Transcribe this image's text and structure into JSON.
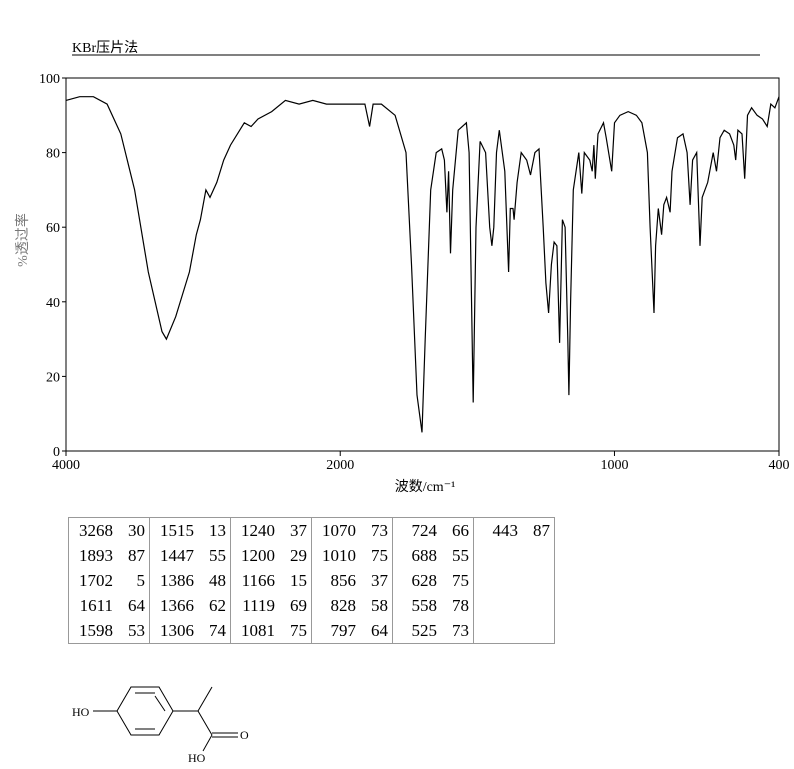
{
  "chart_data": {
    "type": "line",
    "title": "KBr压片法",
    "xlabel": "波数/cm⁻¹",
    "ylabel": "%透过率",
    "xlim": [
      4000,
      400
    ],
    "xticks": [
      4000,
      2000,
      1000,
      400
    ],
    "ylim": [
      0,
      100
    ],
    "yticks": [
      0,
      20,
      40,
      60,
      80,
      100
    ],
    "color": "#000000",
    "x": [
      4000,
      3900,
      3800,
      3700,
      3600,
      3500,
      3400,
      3300,
      3268,
      3200,
      3100,
      3050,
      3020,
      2980,
      2950,
      2900,
      2850,
      2800,
      2700,
      2650,
      2600,
      2500,
      2400,
      2300,
      2200,
      2100,
      2000,
      1950,
      1910,
      1893,
      1880,
      1850,
      1800,
      1760,
      1740,
      1720,
      1702,
      1690,
      1670,
      1650,
      1630,
      1620,
      1611,
      1605,
      1598,
      1590,
      1570,
      1540,
      1530,
      1515,
      1505,
      1490,
      1470,
      1455,
      1447,
      1440,
      1430,
      1420,
      1400,
      1386,
      1380,
      1370,
      1366,
      1355,
      1340,
      1320,
      1306,
      1290,
      1275,
      1260,
      1250,
      1240,
      1230,
      1220,
      1210,
      1200,
      1190,
      1180,
      1170,
      1166,
      1160,
      1150,
      1130,
      1119,
      1110,
      1090,
      1081,
      1075,
      1070,
      1060,
      1040,
      1030,
      1010,
      1000,
      980,
      950,
      920,
      900,
      880,
      870,
      856,
      850,
      840,
      828,
      820,
      810,
      797,
      790,
      770,
      750,
      735,
      724,
      715,
      700,
      688,
      680,
      660,
      640,
      628,
      615,
      600,
      580,
      565,
      558,
      550,
      535,
      525,
      515,
      500,
      480,
      460,
      443,
      430,
      415,
      400
    ],
    "values": [
      94,
      95,
      95,
      93,
      85,
      70,
      48,
      32,
      30,
      36,
      48,
      58,
      62,
      70,
      68,
      72,
      78,
      82,
      88,
      87,
      89,
      91,
      94,
      93,
      94,
      93,
      93,
      93,
      93,
      87,
      93,
      93,
      90,
      80,
      50,
      15,
      5,
      30,
      70,
      80,
      81,
      78,
      64,
      75,
      53,
      70,
      86,
      88,
      80,
      13,
      60,
      83,
      80,
      60,
      55,
      60,
      80,
      86,
      75,
      48,
      65,
      65,
      62,
      72,
      80,
      78,
      74,
      80,
      81,
      60,
      45,
      37,
      50,
      56,
      55,
      29,
      62,
      60,
      30,
      15,
      40,
      70,
      80,
      69,
      80,
      78,
      75,
      82,
      73,
      85,
      88,
      84,
      75,
      88,
      90,
      91,
      90,
      88,
      80,
      60,
      37,
      55,
      65,
      58,
      66,
      68,
      64,
      75,
      84,
      85,
      80,
      66,
      78,
      80,
      55,
      68,
      72,
      80,
      75,
      84,
      86,
      85,
      82,
      78,
      86,
      85,
      73,
      90,
      92,
      90,
      89,
      87,
      93,
      92,
      95
    ]
  },
  "peak_table": [
    [
      3268,
      30
    ],
    [
      1893,
      87
    ],
    [
      1702,
      5
    ],
    [
      1611,
      64
    ],
    [
      1598,
      53
    ],
    [
      1515,
      13
    ],
    [
      1447,
      55
    ],
    [
      1386,
      48
    ],
    [
      1366,
      62
    ],
    [
      1306,
      74
    ],
    [
      1240,
      37
    ],
    [
      1200,
      29
    ],
    [
      1166,
      15
    ],
    [
      1119,
      69
    ],
    [
      1081,
      75
    ],
    [
      1070,
      73
    ],
    [
      1010,
      75
    ],
    [
      856,
      37
    ],
    [
      828,
      58
    ],
    [
      797,
      64
    ],
    [
      724,
      66
    ],
    [
      688,
      55
    ],
    [
      628,
      75
    ],
    [
      558,
      78
    ],
    [
      525,
      73
    ],
    [
      443,
      87
    ]
  ],
  "structure": {
    "labels": [
      "HO",
      "O",
      "HO"
    ]
  }
}
